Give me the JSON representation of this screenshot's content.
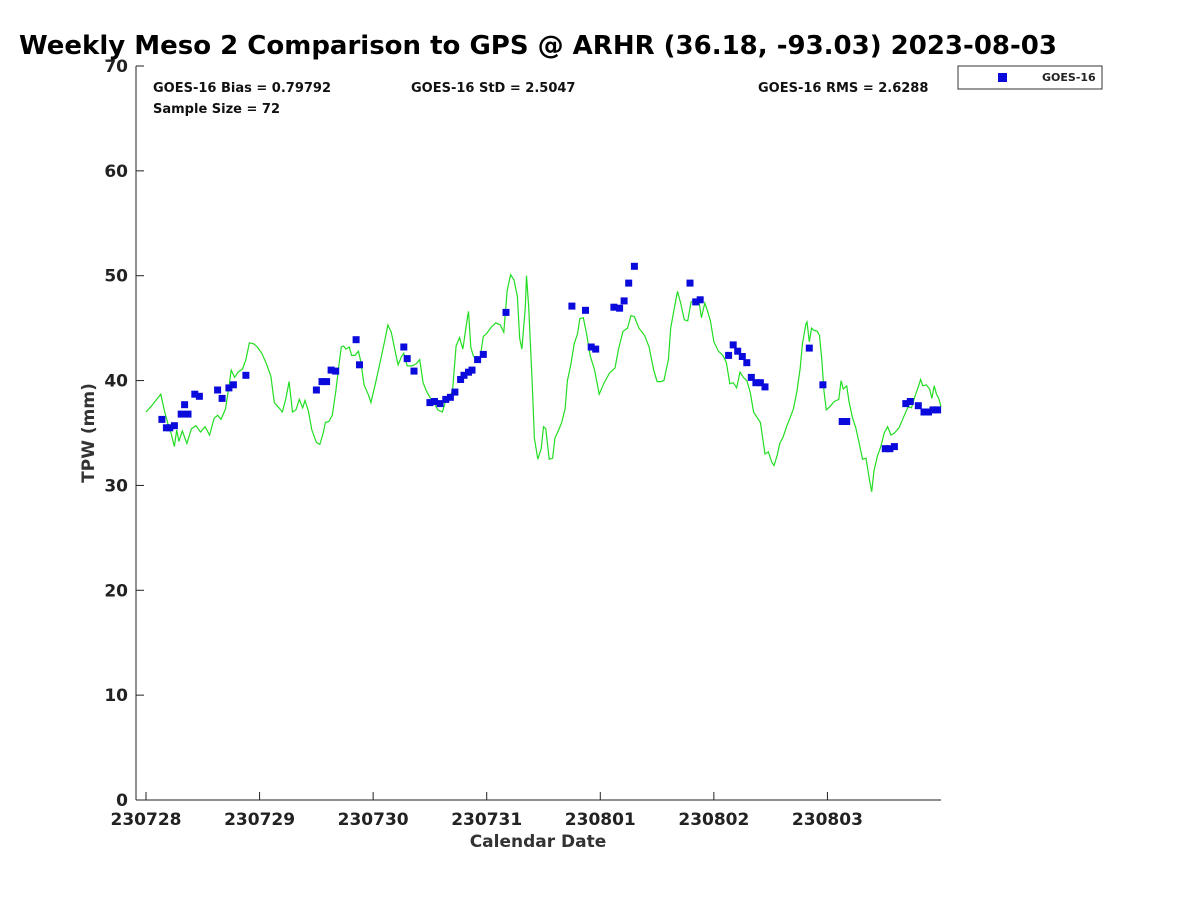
{
  "chart_data": {
    "type": "scatter",
    "title": "Weekly Meso 2 Comparison to GPS @ ARHR (36.18, -93.03) 2023-08-03",
    "xlabel": "Calendar Date",
    "ylabel": "TPW (mm)",
    "xlim": [
      0,
      7.0
    ],
    "ylim": [
      0,
      70
    ],
    "yticks": [
      0,
      10,
      20,
      30,
      40,
      50,
      60,
      70
    ],
    "xticks": [
      {
        "x": 0,
        "label": "230728"
      },
      {
        "x": 1,
        "label": "230729"
      },
      {
        "x": 2,
        "label": "230730"
      },
      {
        "x": 3,
        "label": "230731"
      },
      {
        "x": 4,
        "label": "230801"
      },
      {
        "x": 5,
        "label": "230802"
      },
      {
        "x": 6,
        "label": "230803"
      }
    ],
    "grid": false,
    "legend_position": "top-right",
    "stats": {
      "bias": "GOES-16 Bias = 0.79792",
      "std": "GOES-16 StD = 2.5047",
      "rms": "GOES-16 RMS = 2.6288",
      "sample": "Sample Size = 72"
    },
    "series": [
      {
        "name": "GOES-16",
        "kind": "scatter",
        "marker": "square",
        "color": "#0a0adc",
        "points": [
          [
            0.14,
            36.3
          ],
          [
            0.18,
            35.5
          ],
          [
            0.21,
            35.5
          ],
          [
            0.25,
            35.7
          ],
          [
            0.31,
            36.8
          ],
          [
            0.34,
            37.7
          ],
          [
            0.37,
            36.8
          ],
          [
            0.43,
            38.7
          ],
          [
            0.47,
            38.5
          ],
          [
            0.63,
            39.1
          ],
          [
            0.67,
            38.3
          ],
          [
            0.73,
            39.3
          ],
          [
            0.77,
            39.6
          ],
          [
            0.88,
            40.5
          ],
          [
            1.5,
            39.1
          ],
          [
            1.55,
            39.9
          ],
          [
            1.59,
            39.9
          ],
          [
            1.63,
            41.0
          ],
          [
            1.67,
            40.9
          ],
          [
            1.85,
            43.9
          ],
          [
            1.88,
            41.5
          ],
          [
            2.27,
            43.2
          ],
          [
            2.3,
            42.1
          ],
          [
            2.36,
            40.9
          ],
          [
            2.5,
            37.9
          ],
          [
            2.54,
            38.0
          ],
          [
            2.59,
            37.8
          ],
          [
            2.64,
            38.2
          ],
          [
            2.68,
            38.4
          ],
          [
            2.72,
            38.9
          ],
          [
            2.77,
            40.1
          ],
          [
            2.8,
            40.5
          ],
          [
            2.84,
            40.8
          ],
          [
            2.87,
            41.0
          ],
          [
            2.92,
            42.0
          ],
          [
            2.97,
            42.5
          ],
          [
            3.17,
            46.5
          ],
          [
            3.75,
            47.1
          ],
          [
            3.87,
            46.7
          ],
          [
            3.92,
            43.2
          ],
          [
            3.96,
            43.0
          ],
          [
            4.12,
            47.0
          ],
          [
            4.17,
            46.9
          ],
          [
            4.21,
            47.6
          ],
          [
            4.25,
            49.3
          ],
          [
            4.3,
            50.9
          ],
          [
            4.79,
            49.3
          ],
          [
            4.84,
            47.5
          ],
          [
            4.88,
            47.7
          ],
          [
            5.13,
            42.4
          ],
          [
            5.17,
            43.4
          ],
          [
            5.21,
            42.8
          ],
          [
            5.25,
            42.3
          ],
          [
            5.29,
            41.7
          ],
          [
            5.33,
            40.3
          ],
          [
            5.37,
            39.8
          ],
          [
            5.41,
            39.8
          ],
          [
            5.45,
            39.4
          ],
          [
            5.84,
            43.1
          ],
          [
            5.96,
            39.6
          ],
          [
            6.13,
            36.1
          ],
          [
            6.17,
            36.1
          ],
          [
            6.51,
            33.5
          ],
          [
            6.55,
            33.5
          ],
          [
            6.59,
            33.7
          ],
          [
            6.69,
            37.8
          ],
          [
            6.73,
            38.0
          ],
          [
            6.8,
            37.6
          ],
          [
            6.85,
            37.0
          ],
          [
            6.89,
            37.0
          ],
          [
            6.93,
            37.2
          ],
          [
            6.97,
            37.2
          ]
        ]
      },
      {
        "name": "GPS",
        "kind": "line",
        "color": "#22dd22",
        "points": [
          [
            0.0,
            37.0
          ],
          [
            0.05,
            37.6
          ],
          [
            0.1,
            38.3
          ],
          [
            0.13,
            38.7
          ],
          [
            0.16,
            37.2
          ],
          [
            0.2,
            35.6
          ],
          [
            0.22,
            35.0
          ],
          [
            0.25,
            33.7
          ],
          [
            0.27,
            35.3
          ],
          [
            0.29,
            34.2
          ],
          [
            0.32,
            35.2
          ],
          [
            0.36,
            34.0
          ],
          [
            0.4,
            35.4
          ],
          [
            0.44,
            35.7
          ],
          [
            0.48,
            35.1
          ],
          [
            0.52,
            35.6
          ],
          [
            0.56,
            34.8
          ],
          [
            0.6,
            36.4
          ],
          [
            0.63,
            36.7
          ],
          [
            0.66,
            36.3
          ],
          [
            0.7,
            37.3
          ],
          [
            0.73,
            39.4
          ],
          [
            0.75,
            41.0
          ],
          [
            0.78,
            40.3
          ],
          [
            0.81,
            40.8
          ],
          [
            0.85,
            41.1
          ],
          [
            0.88,
            42.0
          ],
          [
            0.91,
            43.6
          ],
          [
            0.95,
            43.5
          ],
          [
            0.98,
            43.2
          ],
          [
            1.02,
            42.6
          ],
          [
            1.06,
            41.6
          ],
          [
            1.1,
            40.4
          ],
          [
            1.13,
            37.9
          ],
          [
            1.17,
            37.4
          ],
          [
            1.2,
            37.0
          ],
          [
            1.23,
            38.2
          ],
          [
            1.26,
            39.9
          ],
          [
            1.29,
            37.0
          ],
          [
            1.32,
            37.2
          ],
          [
            1.35,
            38.2
          ],
          [
            1.38,
            37.4
          ],
          [
            1.4,
            38.1
          ],
          [
            1.43,
            37.1
          ],
          [
            1.46,
            35.3
          ],
          [
            1.5,
            34.1
          ],
          [
            1.53,
            33.9
          ],
          [
            1.56,
            35.0
          ],
          [
            1.58,
            36.0
          ],
          [
            1.61,
            36.1
          ],
          [
            1.64,
            36.7
          ],
          [
            1.67,
            38.9
          ],
          [
            1.7,
            41.6
          ],
          [
            1.72,
            43.2
          ],
          [
            1.74,
            43.3
          ],
          [
            1.76,
            43.0
          ],
          [
            1.79,
            43.2
          ],
          [
            1.81,
            42.4
          ],
          [
            1.84,
            42.4
          ],
          [
            1.87,
            42.8
          ],
          [
            1.89,
            41.9
          ],
          [
            1.92,
            39.6
          ],
          [
            1.96,
            38.6
          ],
          [
            1.98,
            37.9
          ],
          [
            2.02,
            39.7
          ],
          [
            2.06,
            41.7
          ],
          [
            2.1,
            43.7
          ],
          [
            2.13,
            45.3
          ],
          [
            2.16,
            44.6
          ],
          [
            2.19,
            43.0
          ],
          [
            2.22,
            41.5
          ],
          [
            2.25,
            42.3
          ],
          [
            2.27,
            42.6
          ],
          [
            2.3,
            41.4
          ],
          [
            2.34,
            41.4
          ],
          [
            2.38,
            41.6
          ],
          [
            2.41,
            42.0
          ],
          [
            2.44,
            39.8
          ],
          [
            2.47,
            39.0
          ],
          [
            2.5,
            38.4
          ],
          [
            2.54,
            37.8
          ],
          [
            2.57,
            37.2
          ],
          [
            2.61,
            37.0
          ],
          [
            2.64,
            38.1
          ],
          [
            2.67,
            38.2
          ],
          [
            2.7,
            39.1
          ],
          [
            2.73,
            43.3
          ],
          [
            2.76,
            44.1
          ],
          [
            2.79,
            43.0
          ],
          [
            2.82,
            45.3
          ],
          [
            2.84,
            46.6
          ],
          [
            2.86,
            43.2
          ],
          [
            2.88,
            42.4
          ],
          [
            2.91,
            41.9
          ],
          [
            2.94,
            42.0
          ],
          [
            2.97,
            44.2
          ],
          [
            3.0,
            44.5
          ],
          [
            3.04,
            45.1
          ],
          [
            3.08,
            45.5
          ],
          [
            3.12,
            45.3
          ],
          [
            3.15,
            44.6
          ],
          [
            3.18,
            48.6
          ],
          [
            3.21,
            50.1
          ],
          [
            3.24,
            49.6
          ],
          [
            3.27,
            48.0
          ],
          [
            3.29,
            44.0
          ],
          [
            3.31,
            43.0
          ],
          [
            3.34,
            47.0
          ],
          [
            3.35,
            50.0
          ],
          [
            3.37,
            47.0
          ],
          [
            3.4,
            40.0
          ],
          [
            3.42,
            34.5
          ],
          [
            3.45,
            32.5
          ],
          [
            3.48,
            33.5
          ],
          [
            3.5,
            35.6
          ],
          [
            3.52,
            35.4
          ],
          [
            3.55,
            32.5
          ],
          [
            3.58,
            32.6
          ],
          [
            3.6,
            34.5
          ],
          [
            3.63,
            35.2
          ],
          [
            3.66,
            36.0
          ],
          [
            3.69,
            37.3
          ],
          [
            3.71,
            40.0
          ],
          [
            3.74,
            41.5
          ],
          [
            3.77,
            43.5
          ],
          [
            3.8,
            44.5
          ],
          [
            3.82,
            45.9
          ],
          [
            3.85,
            46.0
          ],
          [
            3.88,
            44.4
          ],
          [
            3.91,
            42.4
          ],
          [
            3.95,
            41.0
          ],
          [
            3.99,
            38.7
          ],
          [
            4.03,
            39.7
          ],
          [
            4.08,
            40.7
          ],
          [
            4.13,
            41.2
          ],
          [
            4.16,
            43.0
          ],
          [
            4.2,
            44.7
          ],
          [
            4.24,
            45.0
          ],
          [
            4.27,
            46.2
          ],
          [
            4.3,
            46.1
          ],
          [
            4.34,
            45.0
          ],
          [
            4.39,
            44.3
          ],
          [
            4.43,
            43.2
          ],
          [
            4.47,
            41.0
          ],
          [
            4.5,
            39.9
          ],
          [
            4.53,
            39.9
          ],
          [
            4.56,
            40.0
          ],
          [
            4.6,
            42.0
          ],
          [
            4.62,
            45.0
          ],
          [
            4.65,
            46.8
          ],
          [
            4.68,
            48.5
          ],
          [
            4.71,
            47.3
          ],
          [
            4.74,
            45.8
          ],
          [
            4.77,
            45.7
          ],
          [
            4.8,
            47.5
          ],
          [
            4.84,
            47.7
          ],
          [
            4.87,
            47.5
          ],
          [
            4.89,
            46.0
          ],
          [
            4.92,
            47.4
          ],
          [
            4.94,
            46.8
          ],
          [
            4.97,
            45.7
          ],
          [
            5.0,
            43.7
          ],
          [
            5.04,
            42.8
          ],
          [
            5.08,
            42.4
          ],
          [
            5.11,
            41.7
          ],
          [
            5.14,
            39.7
          ],
          [
            5.17,
            39.8
          ],
          [
            5.2,
            39.3
          ],
          [
            5.23,
            40.8
          ],
          [
            5.26,
            40.3
          ],
          [
            5.29,
            40.0
          ],
          [
            5.32,
            38.9
          ],
          [
            5.35,
            37.0
          ],
          [
            5.38,
            36.5
          ],
          [
            5.41,
            36.0
          ],
          [
            5.45,
            33.0
          ],
          [
            5.48,
            33.2
          ],
          [
            5.51,
            32.2
          ],
          [
            5.53,
            31.9
          ],
          [
            5.56,
            33.0
          ],
          [
            5.58,
            34.0
          ],
          [
            5.61,
            34.6
          ],
          [
            5.64,
            35.6
          ],
          [
            5.67,
            36.4
          ],
          [
            5.7,
            37.3
          ],
          [
            5.73,
            38.9
          ],
          [
            5.76,
            41.2
          ],
          [
            5.78,
            43.5
          ],
          [
            5.81,
            45.4
          ],
          [
            5.82,
            45.6
          ],
          [
            5.84,
            43.7
          ],
          [
            5.86,
            45.0
          ],
          [
            5.88,
            44.8
          ],
          [
            5.91,
            44.7
          ],
          [
            5.93,
            44.3
          ],
          [
            5.95,
            42.0
          ],
          [
            5.97,
            39.0
          ],
          [
            5.99,
            37.2
          ],
          [
            6.02,
            37.5
          ],
          [
            6.06,
            38.0
          ],
          [
            6.1,
            38.2
          ],
          [
            6.12,
            40.0
          ],
          [
            6.14,
            39.2
          ],
          [
            6.17,
            39.5
          ],
          [
            6.19,
            38.0
          ],
          [
            6.22,
            36.5
          ],
          [
            6.25,
            35.5
          ],
          [
            6.28,
            34.0
          ],
          [
            6.31,
            32.5
          ],
          [
            6.34,
            32.6
          ],
          [
            6.37,
            30.5
          ],
          [
            6.39,
            29.4
          ],
          [
            6.41,
            31.4
          ],
          [
            6.44,
            32.8
          ],
          [
            6.47,
            33.7
          ],
          [
            6.5,
            35.0
          ],
          [
            6.53,
            35.6
          ],
          [
            6.56,
            34.8
          ],
          [
            6.59,
            35.0
          ],
          [
            6.63,
            35.5
          ],
          [
            6.67,
            36.5
          ],
          [
            6.71,
            37.5
          ],
          [
            6.74,
            37.4
          ],
          [
            6.77,
            38.5
          ],
          [
            6.8,
            39.4
          ],
          [
            6.82,
            40.1
          ],
          [
            6.84,
            39.5
          ],
          [
            6.87,
            39.6
          ],
          [
            6.9,
            39.2
          ],
          [
            6.92,
            38.3
          ],
          [
            6.94,
            39.5
          ],
          [
            6.96,
            38.7
          ],
          [
            6.98,
            38.3
          ],
          [
            7.0,
            37.5
          ]
        ]
      }
    ]
  }
}
